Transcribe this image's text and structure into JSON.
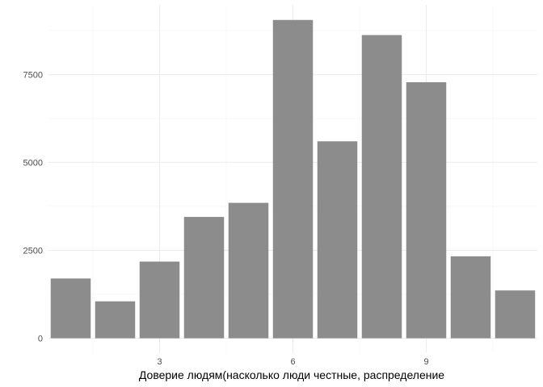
{
  "chart_data": {
    "type": "bar",
    "x": [
      1,
      2,
      3,
      4,
      5,
      6,
      7,
      8,
      9,
      10,
      11
    ],
    "values": [
      1700,
      1050,
      2180,
      3450,
      3850,
      9050,
      5600,
      8620,
      7280,
      2330,
      1360
    ],
    "xlabel": "Доверие людям(насколько люди честные, распределение",
    "ylabel": "",
    "title": "",
    "xlim": [
      0.5,
      11.5
    ],
    "ylim": [
      -400,
      9480
    ],
    "x_ticks": [
      3,
      6,
      9
    ],
    "x_tick_labels": [
      "3",
      "6",
      "9"
    ],
    "y_ticks": [
      0,
      2500,
      5000,
      7500
    ],
    "y_tick_labels": [
      "0",
      "2500",
      "5000",
      "7500"
    ],
    "x_minor_ticks": [
      1.5,
      4.5,
      7.5,
      10.5
    ],
    "y_minor_ticks": [
      1250,
      3750,
      6250,
      8750
    ],
    "grid": true,
    "legend": "none",
    "bar_color": "#8c8c8c"
  }
}
